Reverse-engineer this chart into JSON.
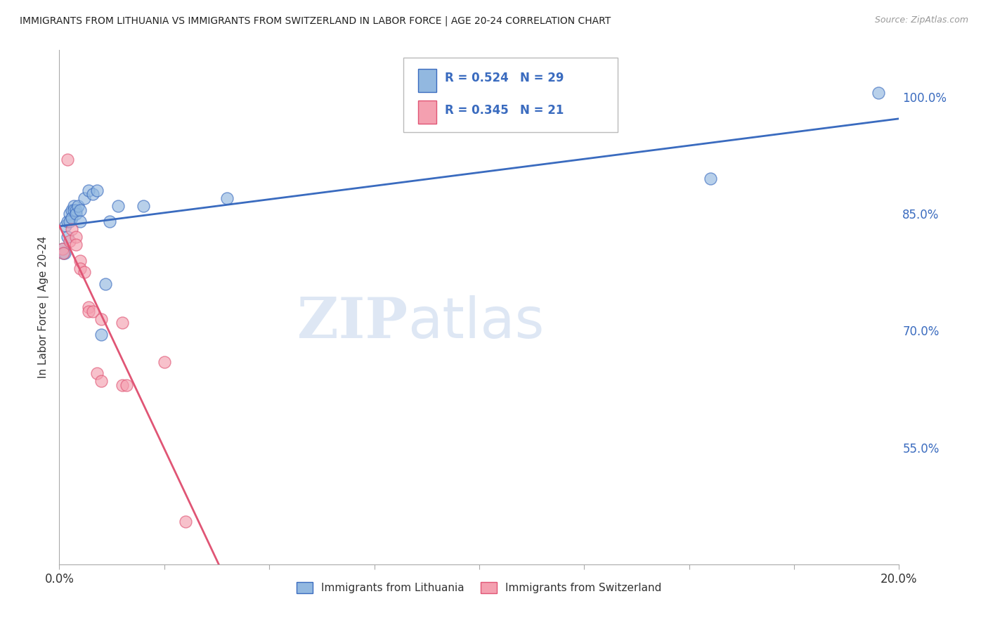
{
  "title": "IMMIGRANTS FROM LITHUANIA VS IMMIGRANTS FROM SWITZERLAND IN LABOR FORCE | AGE 20-24 CORRELATION CHART",
  "source": "Source: ZipAtlas.com",
  "ylabel": "In Labor Force | Age 20-24",
  "ytick_labels": [
    "100.0%",
    "85.0%",
    "70.0%",
    "55.0%"
  ],
  "ytick_values": [
    1.0,
    0.85,
    0.7,
    0.55
  ],
  "xlim": [
    0.0,
    0.2
  ],
  "ylim": [
    0.4,
    1.06
  ],
  "legend_blue_r": "0.524",
  "legend_blue_n": "29",
  "legend_pink_r": "0.345",
  "legend_pink_n": "21",
  "legend_blue_label": "Immigrants from Lithuania",
  "legend_pink_label": "Immigrants from Switzerland",
  "blue_color": "#92b8e0",
  "pink_color": "#f4a0b0",
  "blue_line_color": "#3a6bbf",
  "pink_line_color": "#e05575",
  "blue_scatter": [
    [
      0.0008,
      0.805
    ],
    [
      0.001,
      0.8
    ],
    [
      0.0012,
      0.8
    ],
    [
      0.0015,
      0.835
    ],
    [
      0.002,
      0.84
    ],
    [
      0.002,
      0.82
    ],
    [
      0.0025,
      0.85
    ],
    [
      0.0025,
      0.84
    ],
    [
      0.003,
      0.855
    ],
    [
      0.003,
      0.845
    ],
    [
      0.0035,
      0.86
    ],
    [
      0.0035,
      0.855
    ],
    [
      0.004,
      0.855
    ],
    [
      0.004,
      0.85
    ],
    [
      0.0045,
      0.86
    ],
    [
      0.005,
      0.855
    ],
    [
      0.005,
      0.84
    ],
    [
      0.006,
      0.87
    ],
    [
      0.007,
      0.88
    ],
    [
      0.008,
      0.875
    ],
    [
      0.009,
      0.88
    ],
    [
      0.01,
      0.695
    ],
    [
      0.011,
      0.76
    ],
    [
      0.012,
      0.84
    ],
    [
      0.014,
      0.86
    ],
    [
      0.02,
      0.86
    ],
    [
      0.04,
      0.87
    ],
    [
      0.155,
      0.895
    ],
    [
      0.195,
      1.005
    ]
  ],
  "pink_scatter": [
    [
      0.0008,
      0.805
    ],
    [
      0.001,
      0.8
    ],
    [
      0.002,
      0.92
    ],
    [
      0.0025,
      0.815
    ],
    [
      0.003,
      0.83
    ],
    [
      0.004,
      0.82
    ],
    [
      0.004,
      0.81
    ],
    [
      0.005,
      0.79
    ],
    [
      0.005,
      0.78
    ],
    [
      0.006,
      0.775
    ],
    [
      0.007,
      0.73
    ],
    [
      0.007,
      0.725
    ],
    [
      0.008,
      0.725
    ],
    [
      0.009,
      0.645
    ],
    [
      0.01,
      0.635
    ],
    [
      0.01,
      0.715
    ],
    [
      0.015,
      0.71
    ],
    [
      0.015,
      0.63
    ],
    [
      0.016,
      0.63
    ],
    [
      0.025,
      0.66
    ],
    [
      0.03,
      0.455
    ]
  ],
  "watermark_zip": "ZIP",
  "watermark_atlas": "atlas",
  "background_color": "#ffffff",
  "grid_color": "#dddddd",
  "xtick_positions": [
    0.0,
    0.025,
    0.05,
    0.075,
    0.1,
    0.125,
    0.15,
    0.175,
    0.2
  ]
}
